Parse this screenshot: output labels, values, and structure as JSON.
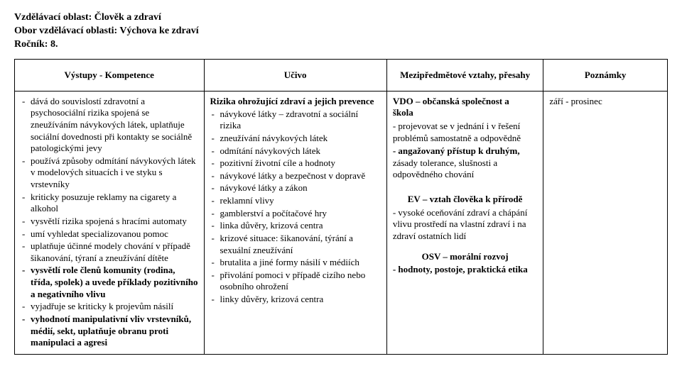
{
  "header": {
    "line1": "Vzdělávací oblast: Člověk a zdraví",
    "line2": "Obor vzdělávací oblasti: Výchova ke zdraví",
    "line3": "Ročník: 8."
  },
  "columns": {
    "c1": "Výstupy - Kompetence",
    "c2": "Učivo",
    "c3": "Mezipředmětové vztahy, přesahy",
    "c4": "Poznámky"
  },
  "col_widths": [
    "29%",
    "28%",
    "24%",
    "19%"
  ],
  "outcomes": {
    "i0": "dává do souvislostí zdravotní a psychosociální rizika spojená se zneužíváním návykových látek, uplatňuje sociální dovednosti při kontakty se sociálně patologickými jevy",
    "i1": "používá způsoby odmítání návykových látek v modelových situacích i ve styku s vrstevníky",
    "i2": "kriticky posuzuje reklamy na cigarety a alkohol",
    "i3": "vysvětlí rizika spojená s hracími automaty",
    "i4": "umí vyhledat specializovanou pomoc",
    "i5": "uplatňuje účinné modely chování v případě šikanování, týraní a zneužívání dítěte",
    "i6": "vysvětlí role členů komunity (rodina, třída, spolek) a uvede příklady pozitivního a negativního vlivu",
    "i7": "vyjadřuje se kriticky k projevům násilí",
    "i8": "vyhodnotí manipulativní vliv vrstevníků, médií, sekt, uplatňuje obranu proti manipulaci a agresi"
  },
  "curriculum": {
    "title": "Rizika ohrožující zdraví a jejich prevence",
    "i0": "návykové látky – zdravotní a sociální rizika",
    "i1": "zneužívání návykových látek",
    "i2": "odmítání návykových látek",
    "i3": "pozitivní životní cíle a hodnoty",
    "i4": "návykové látky a bezpečnost v dopravě",
    "i5": "návykové látky a zákon",
    "i6": "reklamní vlivy",
    "i7": "gamblerství a počítačové hry",
    "i8": "linka důvěry, krizová centra",
    "i9": "krizové situace: šikanování, týrání a sexuální zneužívání",
    "i10": "brutalita a jiné formy násilí v médiích",
    "i11": "přivolání pomoci v případě cizího nebo osobního ohrožení",
    "i12": "linky důvěry, krizová centra"
  },
  "cross": {
    "t1a": "VDO – občanská společnost a",
    "t1b": "škola",
    "p1": "- projevovat se v jednání i v řešení problémů samostatně a odpovědně",
    "p2a": "- angažovaný přístup k druhým,",
    "p2b": "zásady tolerance, slušnosti a odpovědného chování",
    "t2": "EV – vztah člověka k přírodě",
    "p3": "- vysoké oceňování zdraví a chápání vlivu prostředí na vlastní zdraví i na zdraví ostatních lidí",
    "t3": "OSV – morální rozvoj",
    "p4": "- hodnoty, postoje, praktická etika"
  },
  "notes": {
    "n1": "září - prosinec"
  }
}
